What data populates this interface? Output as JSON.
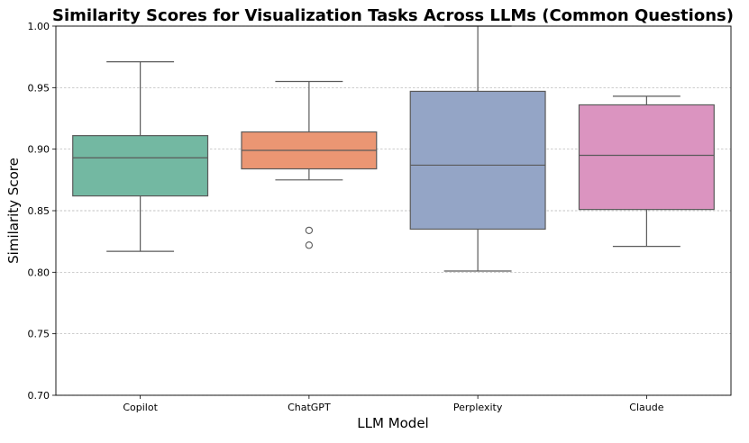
{
  "chart_data": {
    "type": "box",
    "title": "Similarity Scores for Visualization Tasks Across LLMs (Common Questions)",
    "xlabel": "LLM Model",
    "ylabel": "Similarity Score",
    "ylim": [
      0.7,
      1.0
    ],
    "yticks": [
      "0.70",
      "0.75",
      "0.80",
      "0.85",
      "0.90",
      "0.95",
      "1.00"
    ],
    "grid": "horizontal-dashed",
    "categories": [
      "Copilot",
      "ChatGPT",
      "Perplexity",
      "Claude"
    ],
    "boxes": [
      {
        "category": "Copilot",
        "whisker_low": 0.817,
        "q1": 0.862,
        "median": 0.893,
        "q3": 0.911,
        "whisker_high": 0.971,
        "outliers": [],
        "color": "#73b8a2"
      },
      {
        "category": "ChatGPT",
        "whisker_low": 0.875,
        "q1": 0.884,
        "median": 0.899,
        "q3": 0.914,
        "whisker_high": 0.955,
        "outliers": [
          0.834,
          0.822
        ],
        "color": "#eb9673"
      },
      {
        "category": "Perplexity",
        "whisker_low": 0.801,
        "q1": 0.835,
        "median": 0.887,
        "q3": 0.947,
        "whisker_high": 1.0,
        "outliers": [],
        "color": "#94a5c6"
      },
      {
        "category": "Claude",
        "whisker_low": 0.821,
        "q1": 0.851,
        "median": 0.895,
        "q3": 0.936,
        "whisker_high": 0.943,
        "outliers": [],
        "color": "#db94c0"
      }
    ]
  }
}
